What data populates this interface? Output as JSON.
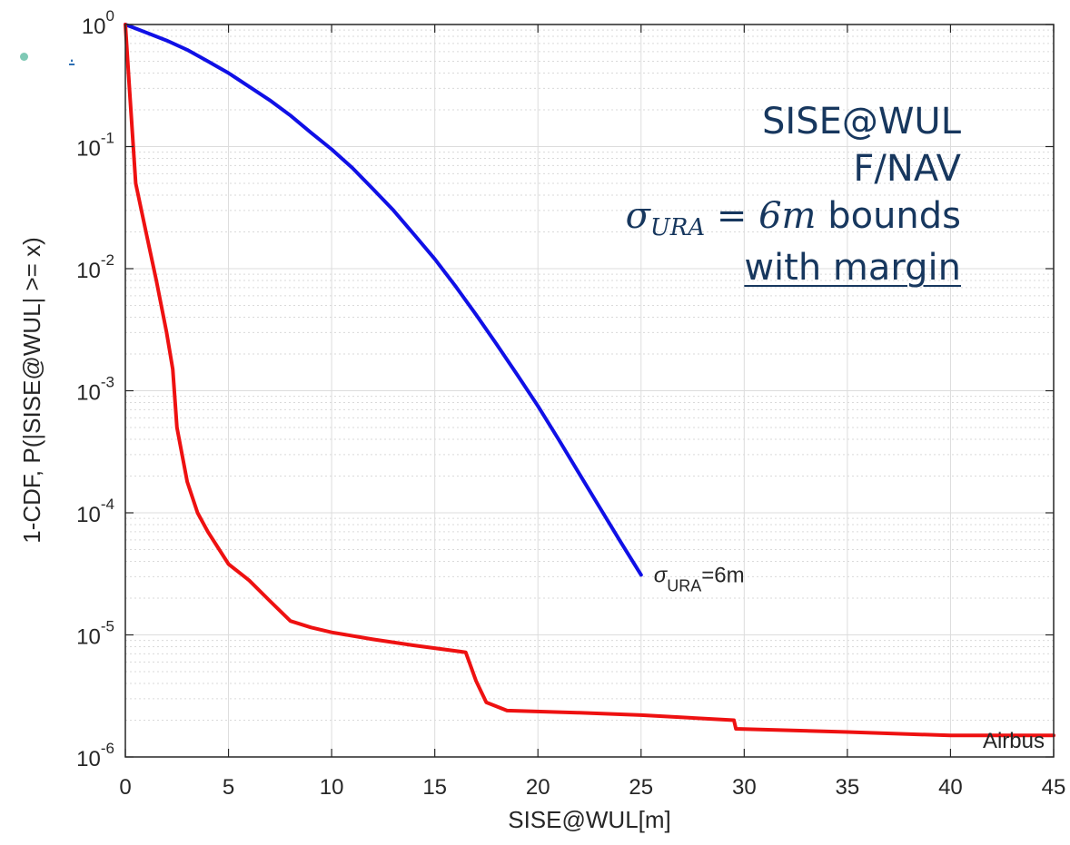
{
  "chart_data": {
    "type": "line",
    "xlabel": "SISE@WUL[m]",
    "ylabel": "1-CDF,  P(|SISE@WUL| >= x)",
    "xlim": [
      0,
      45
    ],
    "ylim": [
      1e-06,
      1
    ],
    "yscale": "log",
    "grid": true,
    "minor_grid": true,
    "x_ticks": [
      "0",
      "5",
      "10",
      "15",
      "20",
      "25",
      "30",
      "35",
      "40",
      "45"
    ],
    "y_ticks": [
      {
        "base": "10",
        "exp": "0"
      },
      {
        "base": "10",
        "exp": "-1"
      },
      {
        "base": "10",
        "exp": "-2"
      },
      {
        "base": "10",
        "exp": "-3"
      },
      {
        "base": "10",
        "exp": "-4"
      },
      {
        "base": "10",
        "exp": "-5"
      },
      {
        "base": "10",
        "exp": "-6"
      }
    ],
    "series": [
      {
        "name": "σURA=6m",
        "color": "#1010e6",
        "label": {
          "sigma": "σ",
          "sub": "URA",
          "rest": "=6m"
        },
        "points": [
          [
            0,
            1.0
          ],
          [
            1,
            0.86
          ],
          [
            2,
            0.74
          ],
          [
            3,
            0.62
          ],
          [
            4,
            0.5
          ],
          [
            5,
            0.4
          ],
          [
            6,
            0.31
          ],
          [
            7,
            0.24
          ],
          [
            8,
            0.18
          ],
          [
            9,
            0.13
          ],
          [
            10,
            0.095
          ],
          [
            11,
            0.067
          ],
          [
            12,
            0.045
          ],
          [
            13,
            0.03
          ],
          [
            14,
            0.019
          ],
          [
            15,
            0.012
          ],
          [
            16,
            0.0072
          ],
          [
            17,
            0.0042
          ],
          [
            18,
            0.0024
          ],
          [
            19,
            0.00135
          ],
          [
            20,
            0.00075
          ],
          [
            21,
            0.0004
          ],
          [
            22,
            0.00021
          ],
          [
            23,
            0.00011
          ],
          [
            24,
            5.8e-05
          ],
          [
            25,
            3.1e-05
          ]
        ]
      },
      {
        "name": "Airbus",
        "color": "#ee1111",
        "points": [
          [
            0,
            1.0
          ],
          [
            0.2,
            0.3
          ],
          [
            0.5,
            0.05
          ],
          [
            1,
            0.02
          ],
          [
            1.5,
            0.008
          ],
          [
            2,
            0.003
          ],
          [
            2.3,
            0.0015
          ],
          [
            2.5,
            0.0005
          ],
          [
            3,
            0.00018
          ],
          [
            3.5,
            0.0001
          ],
          [
            4,
            7e-05
          ],
          [
            5,
            3.8e-05
          ],
          [
            6,
            2.8e-05
          ],
          [
            7,
            1.9e-05
          ],
          [
            8,
            1.3e-05
          ],
          [
            9,
            1.15e-05
          ],
          [
            10,
            1.05e-05
          ],
          [
            12,
            9.2e-06
          ],
          [
            14,
            8.2e-06
          ],
          [
            16.5,
            7.2e-06
          ],
          [
            17,
            4.2e-06
          ],
          [
            17.5,
            2.8e-06
          ],
          [
            18.5,
            2.4e-06
          ],
          [
            22,
            2.3e-06
          ],
          [
            25,
            2.2e-06
          ],
          [
            29.5,
            2e-06
          ],
          [
            29.6,
            1.7e-06
          ],
          [
            35,
            1.6e-06
          ],
          [
            40,
            1.5e-06
          ],
          [
            45,
            1.5e-06
          ]
        ]
      }
    ],
    "annotations": {
      "airbus": "Airbus"
    }
  },
  "overlay": {
    "line1": "SISE@WUL",
    "line2": "F/NAV",
    "sigma": "σ",
    "sub": "URA",
    "equation": " = 6m",
    "bounds": " bounds",
    "line4": "with margin"
  },
  "bullet_link": "."
}
